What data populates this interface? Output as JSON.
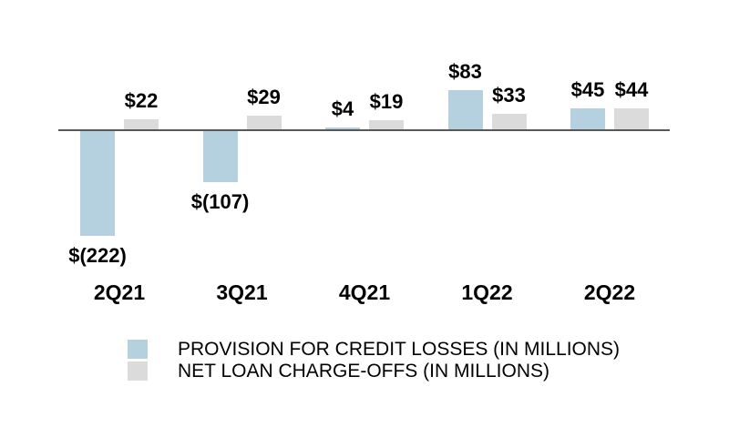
{
  "chart_data": {
    "type": "bar",
    "title": "",
    "categories": [
      "2Q21",
      "3Q21",
      "4Q21",
      "1Q22",
      "2Q22"
    ],
    "series": [
      {
        "name": "PROVISION FOR CREDIT LOSSES (IN MILLIONS)",
        "color": "#b5d1e0",
        "values": [
          -222,
          -107,
          4,
          83,
          45
        ],
        "data_labels": [
          "$(222)",
          "$(107)",
          "$4",
          "$83",
          "$45"
        ]
      },
      {
        "name": "NET LOAN CHARGE-OFFS (IN MILLIONS)",
        "color": "#dbdbdb",
        "values": [
          22,
          29,
          19,
          33,
          44
        ],
        "data_labels": [
          "$22",
          "$29",
          "$19",
          "$33",
          "$44"
        ]
      }
    ],
    "ylim": [
      -250,
      100
    ],
    "grid": false,
    "legend_position": "bottom",
    "axis_color": "#58585a",
    "background_color": "#ffffff",
    "text_color": "#000000"
  }
}
